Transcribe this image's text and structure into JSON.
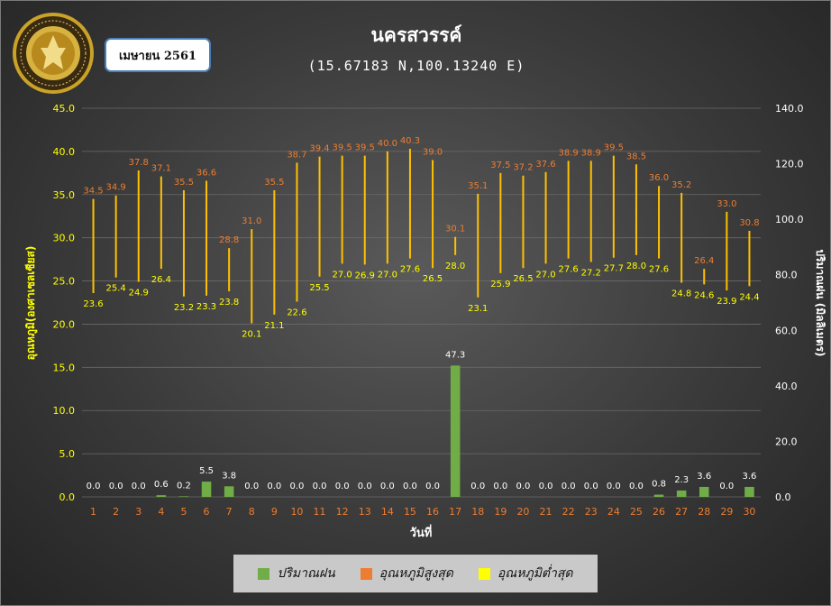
{
  "header": {
    "station": "นครสวรรค์",
    "coordinates": "(15.67183 N,100.13240 E)",
    "month_label": "เมษายน 2561"
  },
  "colors": {
    "rain": "#70ad47",
    "max": "#ed7d31",
    "min": "#ffff00",
    "range_line": "#ffc000",
    "axis_text": "#ffff00",
    "x_tick": "#ed7d31"
  },
  "chart_data": {
    "type": "bar",
    "xlabel": "วันที่",
    "ylabel_left": "อุณหภูมิ(องศาเซลเซียส)",
    "ylabel_right": "ปริมาณฝน (มิลลิเมตร)",
    "ylim_left": [
      0,
      45
    ],
    "ylim_right": [
      0,
      140
    ],
    "yticks_left": [
      "0.0",
      "5.0",
      "10.0",
      "15.0",
      "20.0",
      "25.0",
      "30.0",
      "35.0",
      "40.0",
      "45.0"
    ],
    "yticks_right": [
      "0.0",
      "20.0",
      "40.0",
      "60.0",
      "80.0",
      "100.0",
      "120.0",
      "140.0"
    ],
    "categories": [
      "1",
      "2",
      "3",
      "4",
      "5",
      "6",
      "7",
      "8",
      "9",
      "10",
      "11",
      "12",
      "13",
      "14",
      "15",
      "16",
      "17",
      "18",
      "19",
      "20",
      "21",
      "22",
      "23",
      "24",
      "25",
      "26",
      "27",
      "28",
      "29",
      "30"
    ],
    "series": [
      {
        "name": "ปริมาณฝน",
        "axis": "right",
        "values": [
          0.0,
          0.0,
          0.0,
          0.6,
          0.2,
          5.5,
          3.8,
          0.0,
          0.0,
          0.0,
          0.0,
          0.0,
          0.0,
          0.0,
          0.0,
          0.0,
          47.3,
          0.0,
          0.0,
          0.0,
          0.0,
          0.0,
          0.0,
          0.0,
          0.0,
          0.8,
          2.3,
          3.6,
          0.0,
          3.6
        ]
      },
      {
        "name": "อุณหภูมิสูงสุด",
        "axis": "left",
        "values": [
          34.5,
          34.9,
          37.8,
          37.1,
          35.5,
          36.6,
          28.8,
          31.0,
          35.5,
          38.7,
          39.4,
          39.5,
          39.5,
          40.0,
          40.3,
          39.0,
          30.1,
          35.1,
          37.5,
          37.2,
          37.6,
          38.9,
          38.9,
          39.5,
          38.5,
          36.0,
          35.2,
          26.4,
          33.0,
          30.8
        ]
      },
      {
        "name": "อุณหภูมิต่ำสุด",
        "axis": "left",
        "values": [
          23.6,
          25.4,
          24.9,
          26.4,
          23.2,
          23.3,
          23.8,
          20.1,
          21.1,
          22.6,
          25.5,
          27.0,
          26.9,
          27.0,
          27.6,
          26.5,
          28.0,
          23.1,
          25.9,
          26.5,
          27.0,
          27.6,
          27.2,
          27.7,
          28.0,
          27.6,
          24.8,
          24.6,
          23.9,
          24.4
        ]
      }
    ],
    "legend": "bottom"
  }
}
